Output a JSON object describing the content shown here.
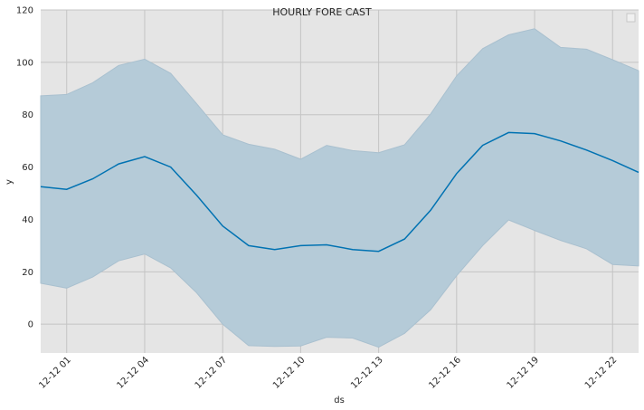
{
  "chart_data": {
    "type": "line",
    "title": "HOURLY FORE CAST",
    "xlabel": "ds",
    "ylabel": "y",
    "x": [
      0,
      1,
      2,
      3,
      4,
      5,
      6,
      7,
      8,
      9,
      10,
      11,
      12,
      13,
      14,
      15,
      16,
      17,
      18,
      19,
      20,
      21,
      22,
      23
    ],
    "x_range": [
      0,
      23
    ],
    "ylim": [
      -11,
      120
    ],
    "yticks": [
      0,
      20,
      40,
      60,
      80,
      100,
      120
    ],
    "xticks": [
      {
        "x": 1,
        "label": "12-12 01"
      },
      {
        "x": 4,
        "label": "12-12 04"
      },
      {
        "x": 7,
        "label": "12-12 07"
      },
      {
        "x": 10,
        "label": "12-12 10"
      },
      {
        "x": 13,
        "label": "12-12 13"
      },
      {
        "x": 16,
        "label": "12-12 16"
      },
      {
        "x": 19,
        "label": "12-12 19"
      },
      {
        "x": 22,
        "label": "12-12 22"
      }
    ],
    "grid": true,
    "legend": "top-right",
    "series": [
      {
        "values": [
          52.5,
          51.5,
          55.5,
          61.2,
          64.0,
          60.0,
          49.2,
          37.5,
          30.0,
          28.5,
          30.0,
          30.3,
          28.5,
          27.8,
          32.5,
          43.5,
          57.5,
          68.3,
          73.2,
          72.8,
          70.0,
          66.5,
          62.5,
          58.0
        ],
        "upper": [
          87.2,
          87.7,
          92.2,
          98.8,
          101.2,
          95.8,
          84.2,
          72.3,
          68.7,
          66.8,
          63.0,
          68.3,
          66.3,
          65.5,
          68.5,
          80.3,
          94.8,
          105.2,
          110.5,
          112.8,
          105.7,
          105.0,
          101.0,
          96.8
        ],
        "lower": [
          15.6,
          13.8,
          18.0,
          24.2,
          26.8,
          21.5,
          12.0,
          0.0,
          -8.2,
          -8.5,
          -8.3,
          -5.0,
          -5.3,
          -8.8,
          -3.5,
          5.5,
          18.5,
          30.0,
          39.8,
          35.8,
          32.0,
          28.8,
          22.8,
          22.2
        ]
      }
    ],
    "colors": {
      "line": "#0072b2",
      "band": "#b5cbd8",
      "plot_bg": "#e5e5e5",
      "grid": "#c4c4c4"
    }
  }
}
